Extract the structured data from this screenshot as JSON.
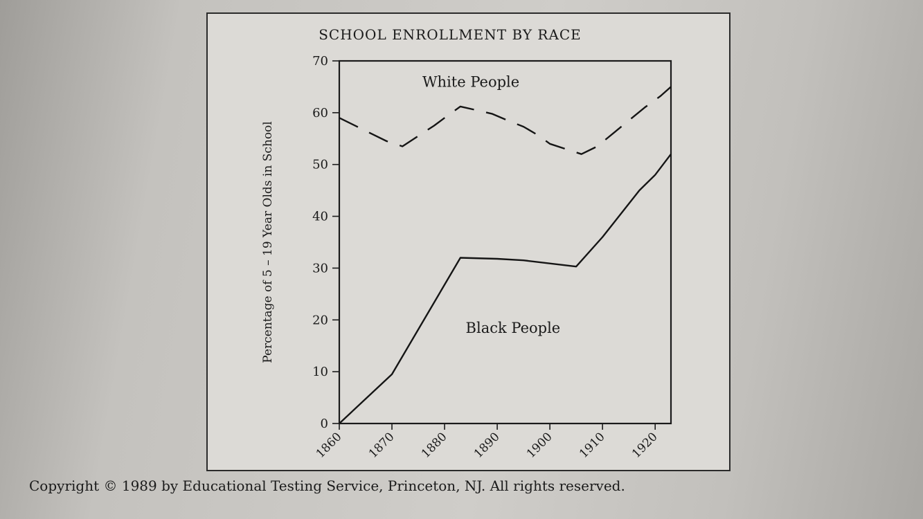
{
  "chart_data": {
    "type": "line",
    "title": "SCHOOL ENROLLMENT BY RACE",
    "xlabel": "",
    "ylabel": "Percentage of 5 – 19 Year Olds in School",
    "xlim": [
      1860,
      1923
    ],
    "ylim": [
      0,
      70
    ],
    "x_ticks": [
      "1860",
      "1870",
      "1880",
      "1890",
      "1900",
      "1910",
      "1920"
    ],
    "y_ticks": [
      "0",
      "10",
      "20",
      "30",
      "40",
      "50",
      "60",
      "70"
    ],
    "grid": false,
    "series": [
      {
        "name": "White People",
        "style": "dashed",
        "x": [
          1860,
          1863,
          1866,
          1869,
          1872,
          1875,
          1878,
          1880,
          1883,
          1886,
          1889,
          1892,
          1895,
          1898,
          1900,
          1903,
          1906,
          1909,
          1912,
          1915,
          1918,
          1921,
          1923
        ],
        "y": [
          59,
          57.5,
          56,
          54.5,
          53.5,
          55.5,
          57.5,
          59,
          61.2,
          60.5,
          59.8,
          58.5,
          57.3,
          55.5,
          54,
          53,
          52,
          53.5,
          56,
          58.5,
          61,
          63.2,
          65
        ]
      },
      {
        "name": "Black People",
        "style": "solid",
        "x": [
          1860,
          1870,
          1883,
          1890,
          1895,
          1905,
          1910,
          1917,
          1920,
          1923
        ],
        "y": [
          0,
          9.5,
          32,
          31.8,
          31.5,
          30.3,
          36,
          45,
          48,
          52
        ]
      }
    ]
  },
  "copyright": "Copyright © 1989 by Educational Testing Service, Princeton, NJ. All rights reserved."
}
